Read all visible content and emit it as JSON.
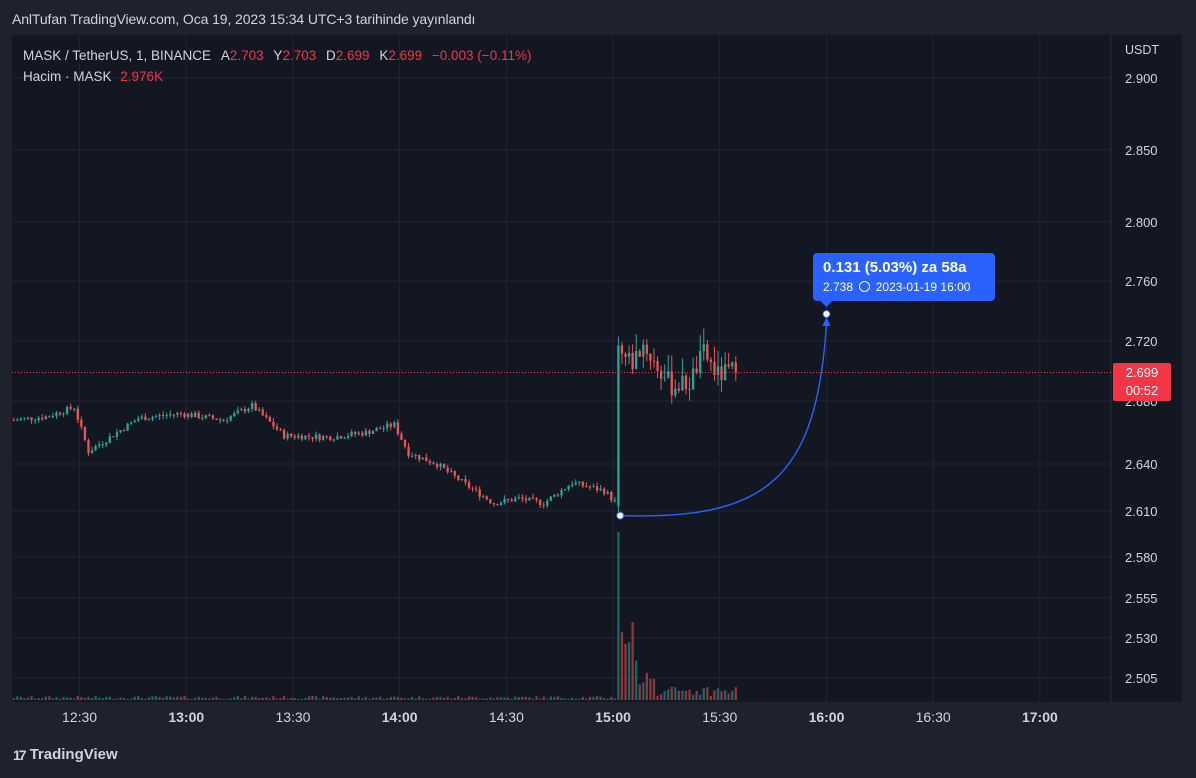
{
  "header": {
    "title": "AnlTufan TradingView.com, Oca 19, 2023 15:34 UTC+3 tarihinde yayınlandı"
  },
  "legend": {
    "symbol": "MASK / TetherUS, 1, BINANCE",
    "a_label": "A",
    "a_value": "2.703",
    "y_label": "Y",
    "y_value": "2.703",
    "d_label": "D",
    "d_value": "2.699",
    "k_label": "K",
    "k_value": "2.699",
    "change": "−0.003 (−0.11%)",
    "volume_label": "Hacim · MASK",
    "volume_value": "2.976K"
  },
  "axis": {
    "currency": "USDT"
  },
  "price_tag": {
    "price": "2.699",
    "countdown": "00:52"
  },
  "measure": {
    "headline": "0.131 (5.03%) za 58a",
    "detail_price": "2.738",
    "detail_time": "2023-01-19  16:00"
  },
  "footer": {
    "brand": "TradingView"
  },
  "colors": {
    "up": "#26a69a",
    "down": "#ef5350",
    "measure": "#2962ff",
    "price_line": "#f23645"
  },
  "chart_data": {
    "type": "candlestick",
    "symbol": "MASK / TetherUS",
    "interval": "1",
    "exchange": "BINANCE",
    "y_ticks": [
      "2.900",
      "2.850",
      "2.800",
      "2.760",
      "2.720",
      "2.680",
      "2.640",
      "2.610",
      "2.580",
      "2.555",
      "2.530",
      "2.505"
    ],
    "x_ticks": [
      "12:30",
      "13:00",
      "13:30",
      "14:00",
      "14:30",
      "15:00",
      "15:30",
      "16:00",
      "16:30",
      "17:00"
    ],
    "x_range": [
      "12:11",
      "17:20"
    ],
    "last_price": 2.699,
    "grid": true,
    "legend_position": "top-left",
    "close_path": [
      [
        "12:11",
        2.668
      ],
      [
        "12:20",
        2.67
      ],
      [
        "12:28",
        2.676
      ],
      [
        "12:32",
        2.648
      ],
      [
        "12:38",
        2.657
      ],
      [
        "12:46",
        2.669
      ],
      [
        "12:58",
        2.672
      ],
      [
        "13:10",
        2.668
      ],
      [
        "13:18",
        2.677
      ],
      [
        "13:27",
        2.658
      ],
      [
        "13:40",
        2.657
      ],
      [
        "13:50",
        2.66
      ],
      [
        "13:58",
        2.665
      ],
      [
        "14:02",
        2.647
      ],
      [
        "14:10",
        2.64
      ],
      [
        "14:18",
        2.627
      ],
      [
        "14:26",
        2.615
      ],
      [
        "14:33",
        2.618
      ],
      [
        "14:40",
        2.615
      ],
      [
        "14:48",
        2.628
      ],
      [
        "14:57",
        2.623
      ],
      [
        "15:00",
        2.616
      ],
      [
        "15:01",
        2.712
      ],
      [
        "15:05",
        2.706
      ],
      [
        "15:08",
        2.718
      ],
      [
        "15:12",
        2.702
      ],
      [
        "15:16",
        2.69
      ],
      [
        "15:21",
        2.692
      ],
      [
        "15:25",
        2.712
      ],
      [
        "15:29",
        2.697
      ],
      [
        "15:33",
        2.7
      ],
      [
        "15:34",
        2.699
      ]
    ],
    "volume_label": "Hacim · MASK",
    "volume_last": "2.976K",
    "measurement": {
      "from": [
        "15:02",
        2.607
      ],
      "to": [
        "16:00",
        2.738
      ],
      "change": 0.131,
      "change_pct": 5.03,
      "duration": "58a"
    }
  }
}
